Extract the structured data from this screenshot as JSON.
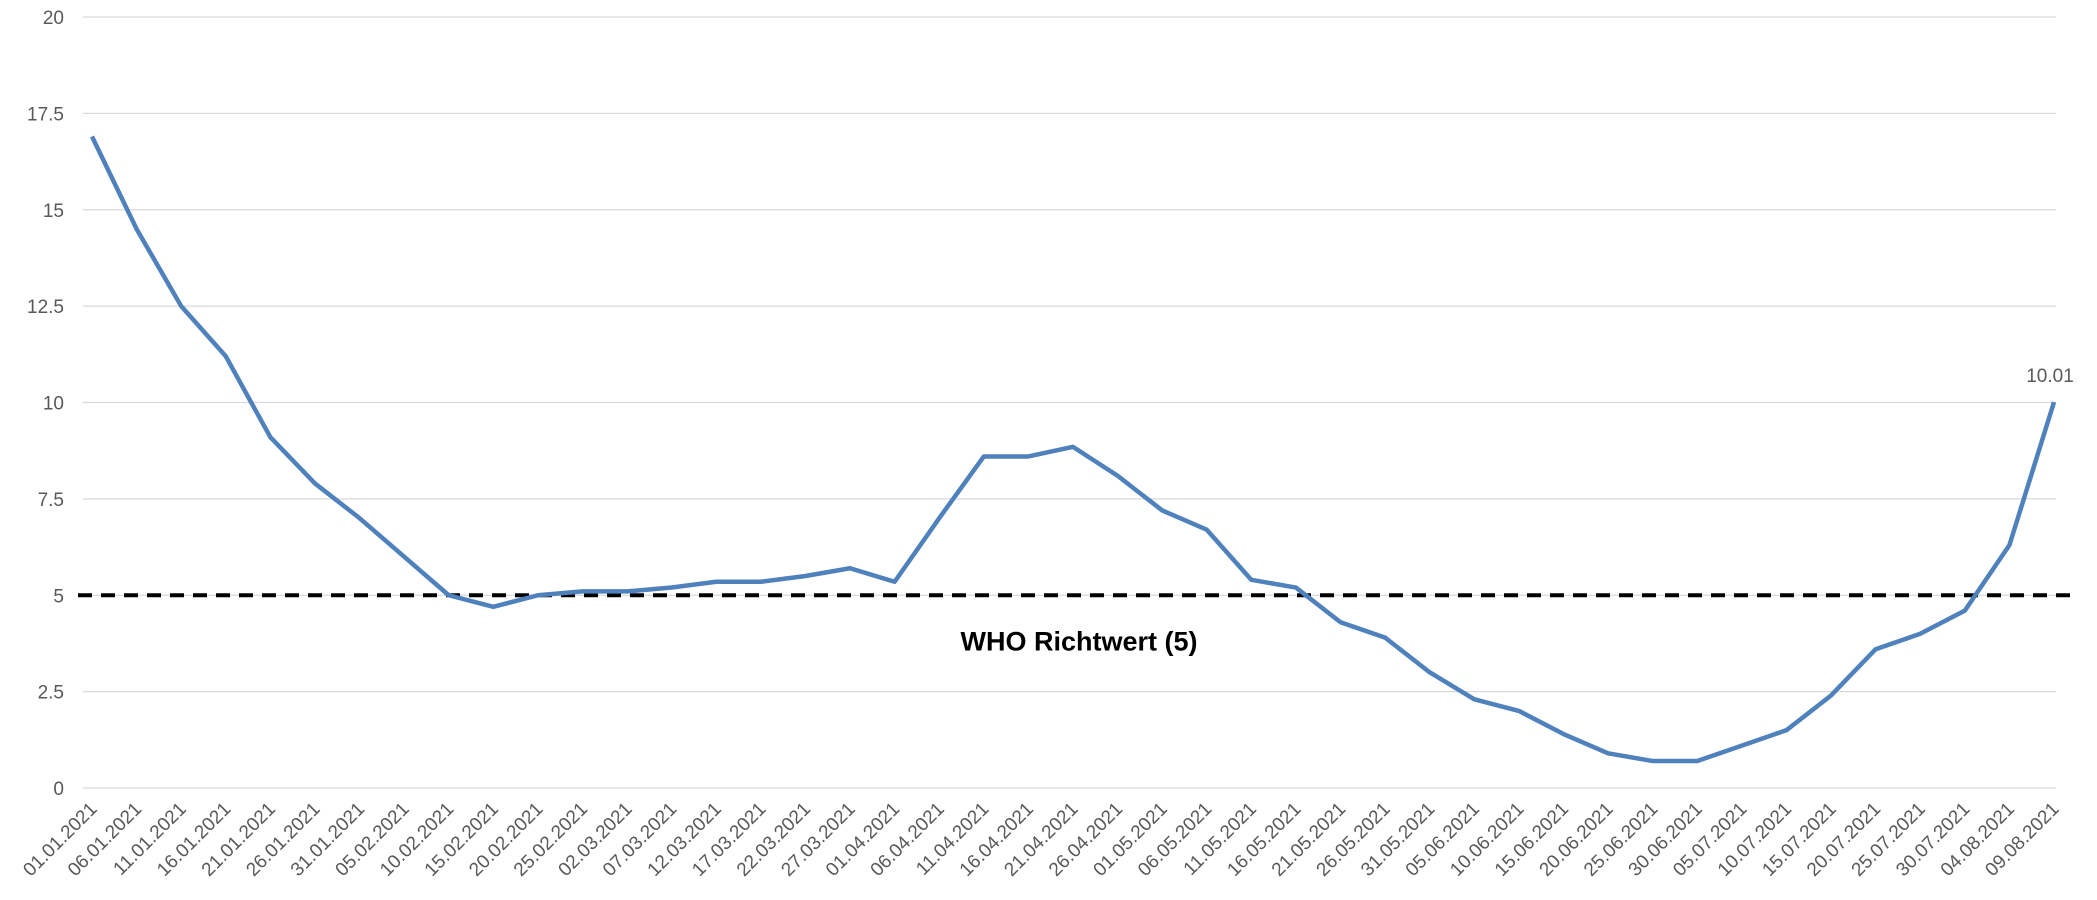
{
  "chart_data": {
    "type": "line",
    "categories": [
      "01.01.2021",
      "06.01.2021",
      "11.01.2021",
      "16.01.2021",
      "21.01.2021",
      "26.01.2021",
      "31.01.2021",
      "05.02.2021",
      "10.02.2021",
      "15.02.2021",
      "20.02.2021",
      "25.02.2021",
      "02.03.2021",
      "07.03.2021",
      "12.03.2021",
      "17.03.2021",
      "22.03.2021",
      "27.03.2021",
      "01.04.2021",
      "06.04.2021",
      "11.04.2021",
      "16.04.2021",
      "21.04.2021",
      "26.04.2021",
      "01.05.2021",
      "06.05.2021",
      "11.05.2021",
      "16.05.2021",
      "21.05.2021",
      "26.05.2021",
      "31.05.2021",
      "05.06.2021",
      "10.06.2021",
      "15.06.2021",
      "20.06.2021",
      "25.06.2021",
      "30.06.2021",
      "05.07.2021",
      "10.07.2021",
      "15.07.2021",
      "20.07.2021",
      "25.07.2021",
      "30.07.2021",
      "04.08.2021",
      "09.08.2021"
    ],
    "series": [
      {
        "color": "#4f81bd",
        "values": [
          16.9,
          14.5,
          12.5,
          11.2,
          9.1,
          7.9,
          7.0,
          6.0,
          5.0,
          4.7,
          5.0,
          5.1,
          5.1,
          5.2,
          5.35,
          5.35,
          5.5,
          5.7,
          5.35,
          7.0,
          8.6,
          8.6,
          8.85,
          8.1,
          7.2,
          6.7,
          5.4,
          5.2,
          4.3,
          3.9,
          3.0,
          2.3,
          2.0,
          1.4,
          0.9,
          0.7,
          0.7,
          1.1,
          1.5,
          2.4,
          3.6,
          4.0,
          4.6,
          6.3,
          10.01
        ]
      }
    ],
    "ylim": [
      0,
      20
    ],
    "yticks": [
      0,
      2.5,
      5,
      7.5,
      10,
      12.5,
      15,
      17.5,
      20
    ],
    "grid": true,
    "reference_line": {
      "value": 5,
      "label": "WHO Richtwert (5)",
      "color": "#000000"
    }
  }
}
